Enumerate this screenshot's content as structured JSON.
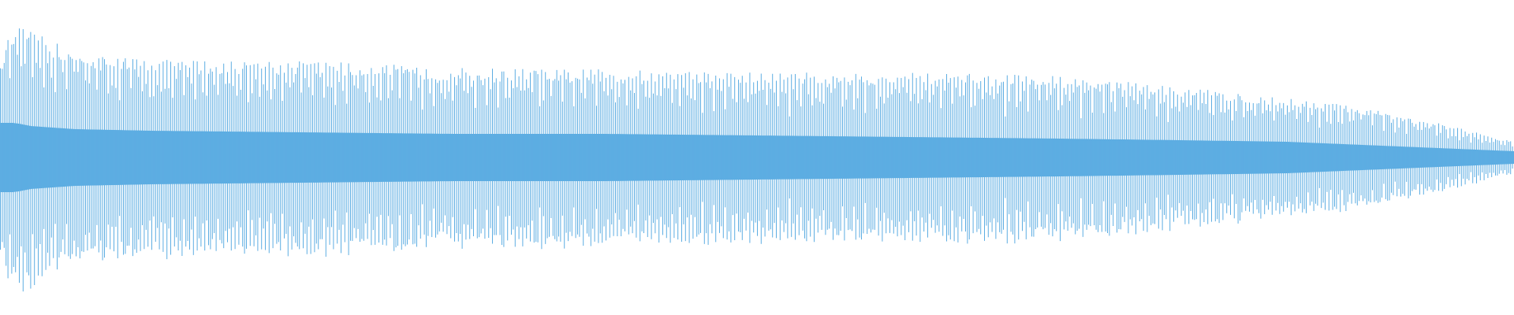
{
  "chart_data": {
    "type": "waveform",
    "title": "",
    "xlabel": "",
    "ylabel": "",
    "axes_visible": false,
    "grid": false,
    "color": "#5dade2",
    "background": "#ffffff",
    "ylim": [
      -1,
      1
    ],
    "envelope_time_fraction": [
      0,
      0.01,
      0.02,
      0.05,
      0.1,
      0.2,
      0.3,
      0.4,
      0.5,
      0.6,
      0.7,
      0.78,
      0.85,
      0.9,
      0.95,
      1.0
    ],
    "envelope_peak_amplitude": [
      0.65,
      0.85,
      0.8,
      0.68,
      0.62,
      0.62,
      0.57,
      0.56,
      0.54,
      0.54,
      0.52,
      0.45,
      0.38,
      0.32,
      0.22,
      0.1
    ],
    "envelope_core_amplitude": [
      0.22,
      0.22,
      0.2,
      0.18,
      0.17,
      0.16,
      0.15,
      0.15,
      0.14,
      0.13,
      0.12,
      0.11,
      0.1,
      0.08,
      0.06,
      0.04
    ]
  }
}
